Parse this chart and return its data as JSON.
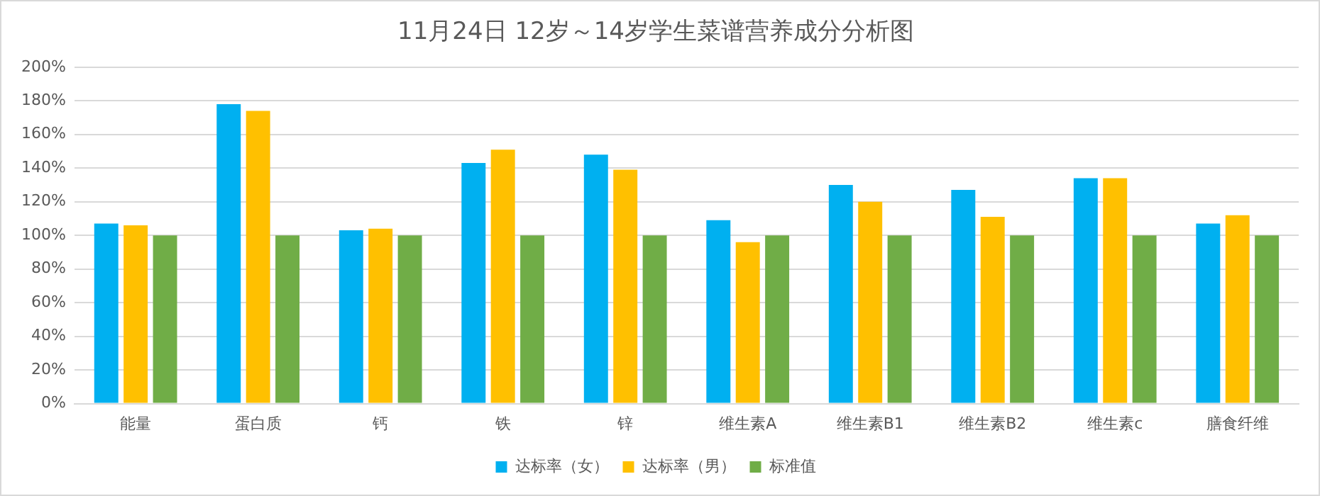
{
  "chart_data": {
    "type": "bar",
    "title": "11月24日 12岁～14岁学生菜谱营养成分分析图",
    "categories": [
      "能量",
      "蛋白质",
      "钙",
      "铁",
      "锌",
      "维生素A",
      "维生素B1",
      "维生素B2",
      "维生素c",
      "膳食纤维"
    ],
    "series": [
      {
        "name": "达标率（女）",
        "color": "#00b0f0",
        "values": [
          107,
          178,
          103,
          143,
          148,
          109,
          130,
          127,
          134,
          107
        ]
      },
      {
        "name": "达标率（男）",
        "color": "#ffc000",
        "values": [
          106,
          174,
          104,
          151,
          139,
          96,
          120,
          111,
          134,
          112
        ]
      },
      {
        "name": "标准值",
        "color": "#70ad47",
        "values": [
          100,
          100,
          100,
          100,
          100,
          100,
          100,
          100,
          100,
          100
        ]
      }
    ],
    "ylim": [
      0,
      200
    ],
    "yticks": [
      {
        "value": 0,
        "label": "0%"
      },
      {
        "value": 20,
        "label": "20%"
      },
      {
        "value": 40,
        "label": "40%"
      },
      {
        "value": 60,
        "label": "60%"
      },
      {
        "value": 80,
        "label": "80%"
      },
      {
        "value": 100,
        "label": "100%"
      },
      {
        "value": 120,
        "label": "120%"
      },
      {
        "value": 140,
        "label": "140%"
      },
      {
        "value": 160,
        "label": "160%"
      },
      {
        "value": 180,
        "label": "180%"
      },
      {
        "value": 200,
        "label": "200%"
      }
    ],
    "grid": "y",
    "legend": "bottom"
  }
}
